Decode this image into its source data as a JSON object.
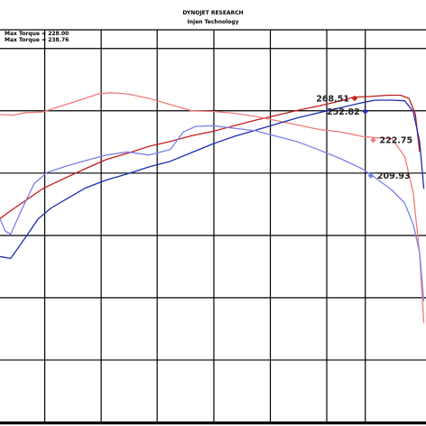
{
  "header": {
    "title": "DYNOJET RESEARCH",
    "subtitle": "Injen Technology"
  },
  "max_readouts": [
    "Max Torque = 228.00",
    "Max Torque = 238.76"
  ],
  "chart_data": {
    "type": "line",
    "title": "DYNOJET RESEARCH",
    "subtitle": "Injen Technology",
    "xlabel": "",
    "ylabel": "",
    "xlim": [
      0,
      1
    ],
    "ylim": [
      0,
      6.3
    ],
    "grid": true,
    "x_gridlines": [
      0.105,
      0.2375,
      0.369,
      0.502,
      0.6346,
      0.767,
      0.8575
    ],
    "colors": {
      "red_dark": "#c41e1e",
      "red_light": "#f07a7a",
      "blue_dark": "#1a2fb0",
      "blue_light": "#7a82e8",
      "grid": "#000000"
    },
    "series": [
      {
        "color": "#c41e1e",
        "end_label": "268.51",
        "x": [
          0,
          0.03,
          0.06,
          0.1,
          0.14,
          0.2,
          0.25,
          0.3,
          0.35,
          0.4,
          0.45,
          0.5,
          0.55,
          0.6,
          0.65,
          0.7,
          0.75,
          0.8,
          0.83,
          0.87,
          0.91,
          0.94,
          0.96,
          0.975,
          0.985
        ],
        "y": [
          3.27,
          3.42,
          3.56,
          3.75,
          3.88,
          4.07,
          4.22,
          4.32,
          4.43,
          4.51,
          4.6,
          4.67,
          4.76,
          4.85,
          4.93,
          5.01,
          5.08,
          5.16,
          5.22,
          5.23,
          5.25,
          5.25,
          5.2,
          4.95,
          4.34
        ]
      },
      {
        "color": "#f07a7a",
        "end_label": "222.75",
        "x": [
          0,
          0.03,
          0.06,
          0.1,
          0.15,
          0.2,
          0.23,
          0.26,
          0.3,
          0.35,
          0.4,
          0.45,
          0.5,
          0.55,
          0.6,
          0.65,
          0.7,
          0.75,
          0.8,
          0.85,
          0.88,
          0.92,
          0.95,
          0.97,
          0.985,
          0.995
        ],
        "y": [
          4.94,
          4.93,
          4.97,
          4.98,
          5.09,
          5.2,
          5.27,
          5.29,
          5.27,
          5.2,
          5.1,
          5.0,
          4.99,
          4.96,
          4.91,
          4.84,
          4.77,
          4.7,
          4.66,
          4.59,
          4.57,
          4.55,
          4.27,
          3.69,
          2.71,
          1.59
        ]
      },
      {
        "color": "#1a2fb0",
        "end_label": "252.82",
        "x": [
          0,
          0.025,
          0.05,
          0.09,
          0.12,
          0.16,
          0.2,
          0.25,
          0.3,
          0.35,
          0.4,
          0.45,
          0.5,
          0.55,
          0.6,
          0.65,
          0.7,
          0.75,
          0.8,
          0.85,
          0.88,
          0.92,
          0.95,
          0.97,
          0.985,
          0.995
        ],
        "y": [
          2.66,
          2.63,
          2.87,
          3.27,
          3.44,
          3.6,
          3.76,
          3.89,
          3.99,
          4.1,
          4.19,
          4.33,
          4.47,
          4.59,
          4.69,
          4.79,
          4.89,
          4.97,
          5.05,
          5.13,
          5.17,
          5.17,
          5.16,
          4.99,
          4.51,
          3.75
        ]
      },
      {
        "color": "#7a82e8",
        "end_label": "209.93",
        "x": [
          0,
          0.012,
          0.025,
          0.05,
          0.08,
          0.11,
          0.15,
          0.2,
          0.25,
          0.3,
          0.35,
          0.4,
          0.43,
          0.46,
          0.5,
          0.55,
          0.6,
          0.65,
          0.7,
          0.75,
          0.8,
          0.85,
          0.88,
          0.92,
          0.95,
          0.97,
          0.985,
          0.995
        ],
        "y": [
          3.27,
          3.07,
          3.02,
          3.4,
          3.83,
          4.01,
          4.1,
          4.2,
          4.29,
          4.34,
          4.29,
          4.38,
          4.66,
          4.75,
          4.76,
          4.72,
          4.68,
          4.59,
          4.5,
          4.37,
          4.23,
          4.07,
          3.93,
          3.73,
          3.52,
          3.18,
          2.73,
          1.94
        ]
      }
    ],
    "end_markers": [
      {
        "label": "268.51",
        "x": 0.8325,
        "y": 5.2,
        "color": "#c41e1e",
        "label_side": "left"
      },
      {
        "label": "252.82",
        "x": 0.8575,
        "y": 4.99,
        "color": "#1a2fb0",
        "label_side": "left"
      },
      {
        "label": "222.75",
        "x": 0.876,
        "y": 4.53,
        "color": "#f07a7a",
        "label_side": "right"
      },
      {
        "label": "209.93",
        "x": 0.8705,
        "y": 3.96,
        "color": "#7a82e8",
        "label_side": "right"
      }
    ]
  }
}
